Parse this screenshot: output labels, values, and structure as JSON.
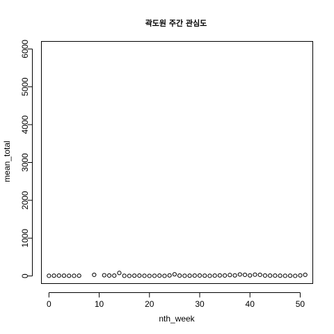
{
  "chart_data": {
    "type": "scatter",
    "title": "곽도원 주간 관심도",
    "xlabel": "nth_week",
    "ylabel": "mean_total",
    "xlim": [
      -1.5,
      52.5
    ],
    "ylim": [
      -200,
      6200
    ],
    "x_ticks": [
      0,
      10,
      20,
      30,
      40,
      50
    ],
    "y_ticks": [
      0,
      1000,
      2000,
      3000,
      4000,
      5000,
      6000
    ],
    "grid": false,
    "legend": "none",
    "marker": "open-circle",
    "points": [
      {
        "x": 0,
        "y": 5
      },
      {
        "x": 1,
        "y": 8
      },
      {
        "x": 2,
        "y": 10
      },
      {
        "x": 3,
        "y": 8
      },
      {
        "x": 4,
        "y": 6
      },
      {
        "x": 5,
        "y": 5
      },
      {
        "x": 6,
        "y": 8
      },
      {
        "x": 9,
        "y": 30
      },
      {
        "x": 11,
        "y": 20
      },
      {
        "x": 12,
        "y": 12
      },
      {
        "x": 13,
        "y": 10
      },
      {
        "x": 14,
        "y": 80
      },
      {
        "x": 15,
        "y": 5
      },
      {
        "x": 16,
        "y": 3
      },
      {
        "x": 17,
        "y": 8
      },
      {
        "x": 18,
        "y": 10
      },
      {
        "x": 19,
        "y": 5
      },
      {
        "x": 20,
        "y": 3
      },
      {
        "x": 21,
        "y": 5
      },
      {
        "x": 22,
        "y": 10
      },
      {
        "x": 23,
        "y": 3
      },
      {
        "x": 24,
        "y": 15
      },
      {
        "x": 25,
        "y": 45
      },
      {
        "x": 26,
        "y": 10
      },
      {
        "x": 27,
        "y": 5
      },
      {
        "x": 28,
        "y": 8
      },
      {
        "x": 29,
        "y": 10
      },
      {
        "x": 30,
        "y": 12
      },
      {
        "x": 31,
        "y": 8
      },
      {
        "x": 32,
        "y": 5
      },
      {
        "x": 33,
        "y": 10
      },
      {
        "x": 34,
        "y": 15
      },
      {
        "x": 35,
        "y": 12
      },
      {
        "x": 36,
        "y": 25
      },
      {
        "x": 37,
        "y": 15
      },
      {
        "x": 38,
        "y": 40
      },
      {
        "x": 39,
        "y": 30
      },
      {
        "x": 40,
        "y": 15
      },
      {
        "x": 41,
        "y": 35
      },
      {
        "x": 42,
        "y": 30
      },
      {
        "x": 43,
        "y": 12
      },
      {
        "x": 44,
        "y": 10
      },
      {
        "x": 45,
        "y": 10
      },
      {
        "x": 46,
        "y": 8
      },
      {
        "x": 47,
        "y": 5
      },
      {
        "x": 48,
        "y": 8
      },
      {
        "x": 49,
        "y": 3
      },
      {
        "x": 50,
        "y": 15
      },
      {
        "x": 51,
        "y": 30
      }
    ]
  }
}
